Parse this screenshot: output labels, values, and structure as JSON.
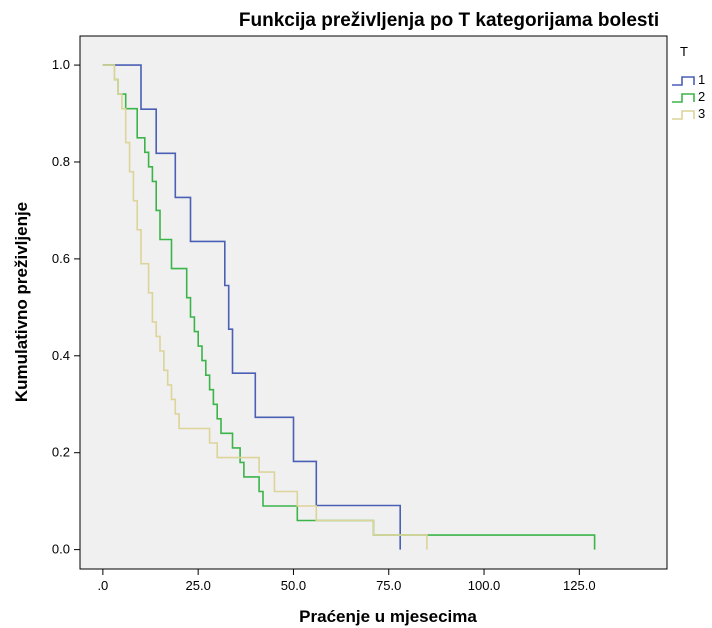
{
  "chart_data": {
    "type": "line",
    "title": "Funkcija preživljenja po T kategorijama bolesti",
    "xlabel": "Praćenje u mjesecima",
    "ylabel": "Kumulativno preživljenje",
    "xlim": [
      -6,
      148
    ],
    "ylim": [
      -0.04,
      1.06
    ],
    "x_ticks": [
      0,
      25,
      50,
      75,
      100,
      125
    ],
    "x_tick_labels": [
      ".0",
      "25.0",
      "50.0",
      "75.0",
      "100.0",
      "125.0"
    ],
    "y_ticks": [
      0,
      0.2,
      0.4,
      0.6,
      0.8,
      1.0
    ],
    "y_tick_labels": [
      "0.0",
      "0.2",
      "0.4",
      "0.6",
      "0.8",
      "1.0"
    ],
    "legend_title": "T",
    "legend_position": "top-right",
    "grid": false,
    "background": "#f0f0f0",
    "series": [
      {
        "name": "1",
        "color": "#4a5fb5",
        "x": [
          0,
          2,
          10,
          14,
          19,
          23,
          32,
          33,
          34,
          40,
          50,
          56,
          78
        ],
        "y": [
          1.0,
          1.0,
          0.909,
          0.818,
          0.727,
          0.636,
          0.545,
          0.455,
          0.364,
          0.273,
          0.182,
          0.091,
          0.0
        ]
      },
      {
        "name": "2",
        "color": "#3bb54a",
        "x": [
          0,
          2,
          3,
          4,
          6,
          9,
          11,
          12,
          13,
          14,
          15,
          18,
          22,
          23,
          24,
          25,
          26,
          27,
          28,
          29,
          30,
          31,
          32,
          34,
          36,
          37,
          41,
          42,
          51,
          60,
          71,
          129
        ],
        "y": [
          1.0,
          1.0,
          0.97,
          0.94,
          0.91,
          0.85,
          0.82,
          0.79,
          0.76,
          0.7,
          0.64,
          0.58,
          0.52,
          0.48,
          0.45,
          0.42,
          0.39,
          0.36,
          0.33,
          0.3,
          0.27,
          0.24,
          0.24,
          0.21,
          0.18,
          0.15,
          0.12,
          0.09,
          0.06,
          0.06,
          0.03,
          0.0
        ]
      },
      {
        "name": "3",
        "color": "#ddd49a",
        "x": [
          0,
          2,
          3,
          4,
          5,
          6,
          7,
          8,
          9,
          10,
          12,
          13,
          14,
          15,
          16,
          17,
          18,
          19,
          20,
          21,
          23,
          28,
          30,
          34,
          41,
          45,
          51,
          56,
          71,
          85
        ],
        "y": [
          1.0,
          1.0,
          0.97,
          0.94,
          0.91,
          0.84,
          0.78,
          0.72,
          0.66,
          0.59,
          0.53,
          0.47,
          0.44,
          0.41,
          0.37,
          0.34,
          0.31,
          0.28,
          0.25,
          0.25,
          0.25,
          0.22,
          0.19,
          0.19,
          0.16,
          0.12,
          0.09,
          0.06,
          0.03,
          0.0
        ]
      }
    ]
  }
}
